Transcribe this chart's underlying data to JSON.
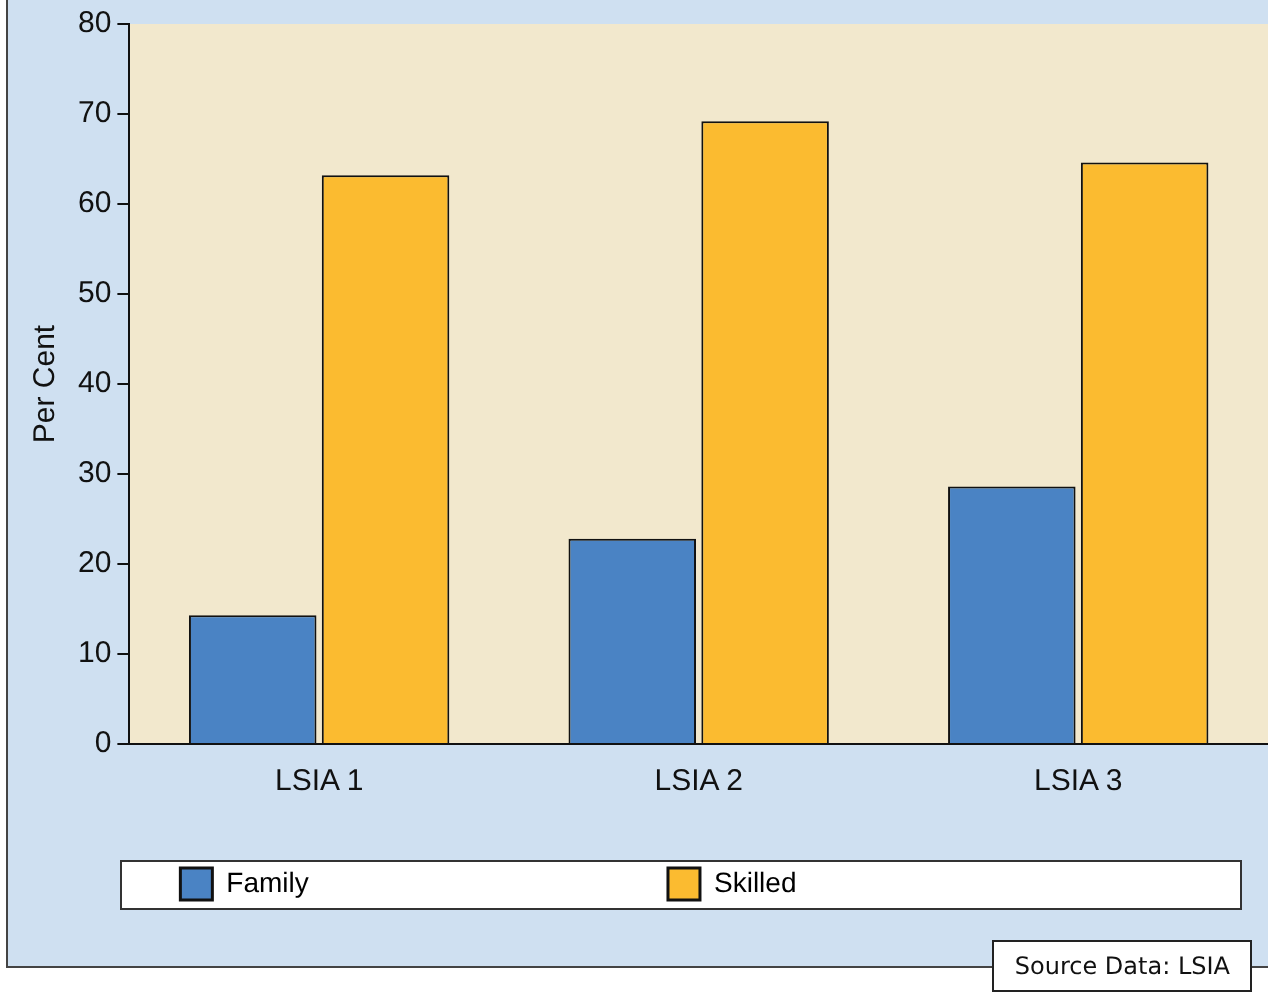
{
  "chart_data": {
    "type": "bar",
    "ylabel": "Per Cent",
    "categories": [
      "LSIA 1",
      "LSIA 2",
      "LSIA 3"
    ],
    "series": [
      {
        "name": "Family",
        "color": "#4a83c4",
        "values": [
          14.3,
          22.8,
          28.6
        ]
      },
      {
        "name": "Skilled",
        "color": "#fbbb30",
        "values": [
          63.2,
          69.2,
          64.6
        ]
      }
    ],
    "ylim": [
      0,
      80
    ],
    "yticks": [
      0,
      10,
      20,
      30,
      40,
      50,
      60,
      70,
      80
    ],
    "grid": false,
    "legend": "bottom",
    "annotations": [
      "Source Data: LSIA"
    ]
  }
}
